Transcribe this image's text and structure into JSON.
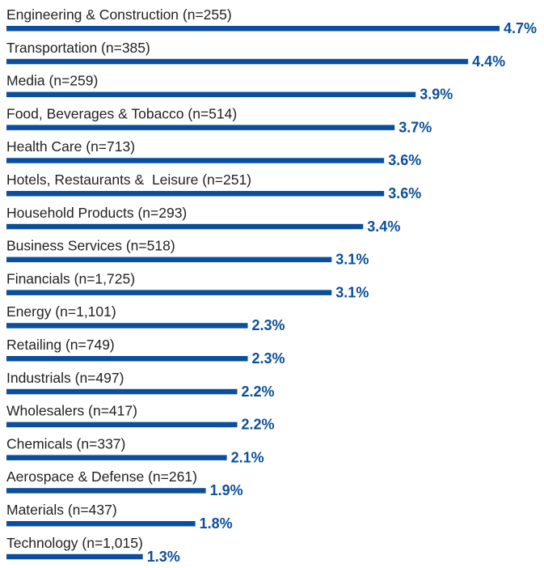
{
  "chart_data": {
    "type": "bar",
    "orientation": "horizontal",
    "categories": [
      "Engineering & Construction (n=255)",
      "Transportation (n=385)",
      "Media (n=259)",
      "Food, Beverages & Tobacco (n=514)",
      "Health Care (n=713)",
      "Hotels, Restaurants &  Leisure (n=251)",
      "Household Products (n=293)",
      "Business Services (n=518)",
      "Financials (n=1,725)",
      "Energy (n=1,101)",
      "Retailing (n=749)",
      "Industrials (n=497)",
      "Wholesalers (n=417)",
      "Chemicals (n=337)",
      "Aerospace & Defense (n=261)",
      "Materials (n=437)",
      "Technology (n=1,015)"
    ],
    "values": [
      4.7,
      4.4,
      3.9,
      3.7,
      3.6,
      3.6,
      3.4,
      3.1,
      3.1,
      2.3,
      2.3,
      2.2,
      2.2,
      2.1,
      1.9,
      1.8,
      1.3
    ],
    "value_labels": [
      "4.7%",
      "4.4%",
      "3.9%",
      "3.7%",
      "3.6%",
      "3.6%",
      "3.4%",
      "3.1%",
      "3.1%",
      "2.3%",
      "2.3%",
      "2.2%",
      "2.2%",
      "2.1%",
      "1.9%",
      "1.8%",
      "1.3%"
    ],
    "xlim": [
      0,
      4.7
    ],
    "grid": false,
    "legend": "none",
    "colors": {
      "bar": "#0b4f9c",
      "value_label": "#0b4f9c",
      "category_label": "#222222"
    }
  }
}
